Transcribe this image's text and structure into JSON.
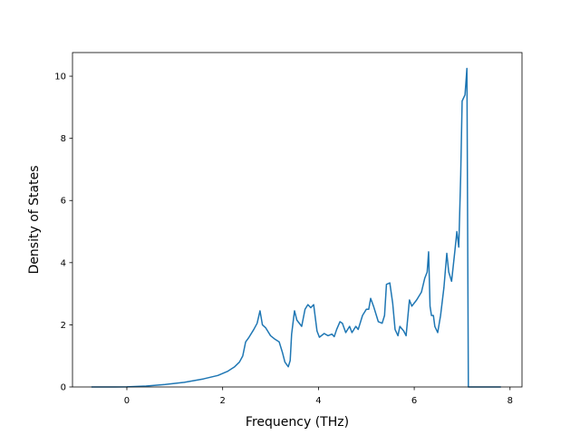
{
  "chart_data": {
    "type": "line",
    "x_label": "Frequency (THz)",
    "y_label": "Density of States",
    "xlim": [
      -1.135,
      8.25
    ],
    "ylim": [
      0,
      10.76
    ],
    "xticks": [
      0,
      2,
      4,
      6,
      8
    ],
    "yticks": [
      0,
      2,
      4,
      6,
      8,
      10
    ],
    "grid": false,
    "series": [
      {
        "color": "#1f77b4",
        "x": [
          -0.74,
          -0.3,
          0,
          0.4,
          0.8,
          1.2,
          1.6,
          1.9,
          2.1,
          2.25,
          2.35,
          2.42,
          2.48,
          2.55,
          2.65,
          2.72,
          2.78,
          2.83,
          2.9,
          3.0,
          3.08,
          3.18,
          3.25,
          3.3,
          3.37,
          3.41,
          3.44,
          3.5,
          3.55,
          3.65,
          3.72,
          3.78,
          3.84,
          3.9,
          3.97,
          4.02,
          4.12,
          4.2,
          4.28,
          4.33,
          4.38,
          4.45,
          4.5,
          4.57,
          4.65,
          4.7,
          4.78,
          4.83,
          4.92,
          5.0,
          5.05,
          5.09,
          5.15,
          5.25,
          5.33,
          5.38,
          5.42,
          5.49,
          5.55,
          5.6,
          5.66,
          5.7,
          5.78,
          5.83,
          5.9,
          5.95,
          6.05,
          6.15,
          6.22,
          6.27,
          6.3,
          6.33,
          6.36,
          6.4,
          6.43,
          6.49,
          6.55,
          6.62,
          6.68,
          6.72,
          6.78,
          6.85,
          6.89,
          6.93,
          6.97,
          7.0,
          7.06,
          7.1,
          7.13,
          7.81
        ],
        "values": [
          0,
          0,
          0.005,
          0.03,
          0.08,
          0.15,
          0.26,
          0.37,
          0.5,
          0.65,
          0.8,
          1.0,
          1.45,
          1.6,
          1.85,
          2.05,
          2.45,
          2.0,
          1.9,
          1.65,
          1.55,
          1.45,
          1.1,
          0.8,
          0.65,
          0.85,
          1.7,
          2.45,
          2.15,
          1.95,
          2.5,
          2.65,
          2.55,
          2.65,
          1.8,
          1.6,
          1.72,
          1.65,
          1.7,
          1.62,
          1.85,
          2.1,
          2.05,
          1.75,
          1.95,
          1.75,
          1.95,
          1.85,
          2.3,
          2.5,
          2.5,
          2.85,
          2.6,
          2.1,
          2.05,
          2.3,
          3.3,
          3.35,
          2.7,
          1.85,
          1.65,
          1.95,
          1.8,
          1.65,
          2.8,
          2.6,
          2.8,
          3.05,
          3.5,
          3.7,
          4.35,
          2.6,
          2.3,
          2.3,
          1.95,
          1.75,
          2.3,
          3.2,
          4.3,
          3.7,
          3.4,
          4.4,
          5.0,
          4.5,
          6.8,
          9.2,
          9.4,
          10.25,
          0,
          0
        ]
      }
    ]
  }
}
